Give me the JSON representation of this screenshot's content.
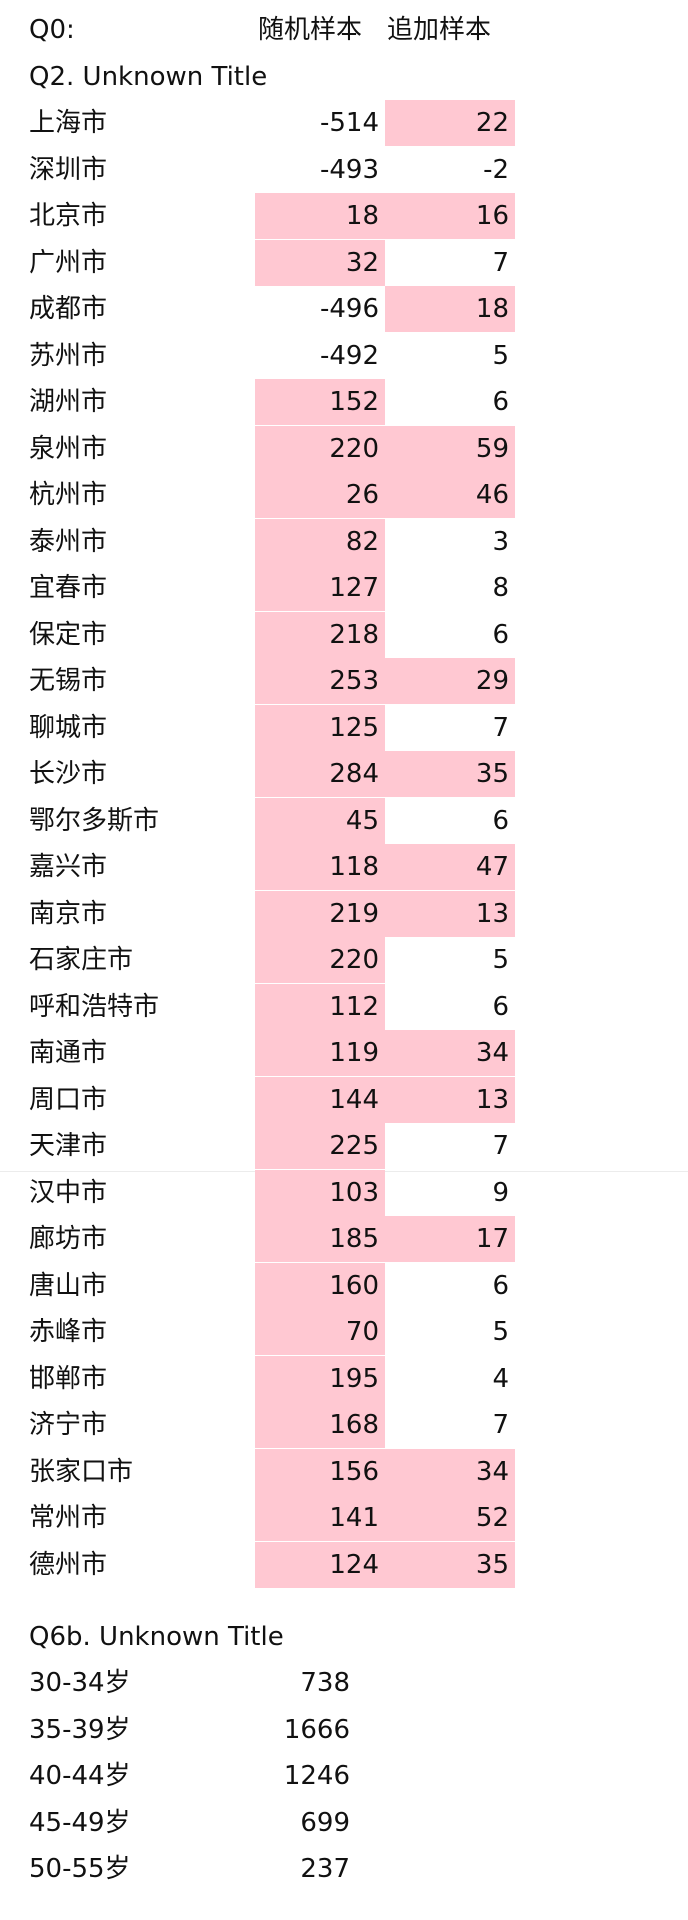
{
  "header": {
    "q0_label": "Q0:",
    "col1": "随机样本",
    "col2": "追加样本"
  },
  "q2": {
    "title": "Q2. Unknown Title",
    "rows": [
      {
        "city": "上海市",
        "random": "-514",
        "extra": "22",
        "random_hl": false,
        "extra_hl": true
      },
      {
        "city": "深圳市",
        "random": "-493",
        "extra": "-2",
        "random_hl": false,
        "extra_hl": false
      },
      {
        "city": "北京市",
        "random": "18",
        "extra": "16",
        "random_hl": true,
        "extra_hl": true
      },
      {
        "city": "广州市",
        "random": "32",
        "extra": "7",
        "random_hl": true,
        "extra_hl": false
      },
      {
        "city": "成都市",
        "random": "-496",
        "extra": "18",
        "random_hl": false,
        "extra_hl": true
      },
      {
        "city": "苏州市",
        "random": "-492",
        "extra": "5",
        "random_hl": false,
        "extra_hl": false
      },
      {
        "city": "湖州市",
        "random": "152",
        "extra": "6",
        "random_hl": true,
        "extra_hl": false
      },
      {
        "city": "泉州市",
        "random": "220",
        "extra": "59",
        "random_hl": true,
        "extra_hl": true
      },
      {
        "city": "杭州市",
        "random": "26",
        "extra": "46",
        "random_hl": true,
        "extra_hl": true
      },
      {
        "city": "泰州市",
        "random": "82",
        "extra": "3",
        "random_hl": true,
        "extra_hl": false
      },
      {
        "city": "宜春市",
        "random": "127",
        "extra": "8",
        "random_hl": true,
        "extra_hl": false
      },
      {
        "city": "保定市",
        "random": "218",
        "extra": "6",
        "random_hl": true,
        "extra_hl": false
      },
      {
        "city": "无锡市",
        "random": "253",
        "extra": "29",
        "random_hl": true,
        "extra_hl": true
      },
      {
        "city": "聊城市",
        "random": "125",
        "extra": "7",
        "random_hl": true,
        "extra_hl": false
      },
      {
        "city": "长沙市",
        "random": "284",
        "extra": "35",
        "random_hl": true,
        "extra_hl": true
      },
      {
        "city": "鄂尔多斯市",
        "random": "45",
        "extra": "6",
        "random_hl": true,
        "extra_hl": false
      },
      {
        "city": "嘉兴市",
        "random": "118",
        "extra": "47",
        "random_hl": true,
        "extra_hl": true
      },
      {
        "city": "南京市",
        "random": "219",
        "extra": "13",
        "random_hl": true,
        "extra_hl": true
      },
      {
        "city": "石家庄市",
        "random": "220",
        "extra": "5",
        "random_hl": true,
        "extra_hl": false
      },
      {
        "city": "呼和浩特市",
        "random": "112",
        "extra": "6",
        "random_hl": true,
        "extra_hl": false
      },
      {
        "city": "南通市",
        "random": "119",
        "extra": "34",
        "random_hl": true,
        "extra_hl": true
      },
      {
        "city": "周口市",
        "random": "144",
        "extra": "13",
        "random_hl": true,
        "extra_hl": true
      },
      {
        "city": "天津市",
        "random": "225",
        "extra": "7",
        "random_hl": true,
        "extra_hl": false
      },
      {
        "city": "汉中市",
        "random": "103",
        "extra": "9",
        "random_hl": true,
        "extra_hl": false
      },
      {
        "city": "廊坊市",
        "random": "185",
        "extra": "17",
        "random_hl": true,
        "extra_hl": true
      },
      {
        "city": "唐山市",
        "random": "160",
        "extra": "6",
        "random_hl": true,
        "extra_hl": false
      },
      {
        "city": "赤峰市",
        "random": "70",
        "extra": "5",
        "random_hl": true,
        "extra_hl": false
      },
      {
        "city": "邯郸市",
        "random": "195",
        "extra": "4",
        "random_hl": true,
        "extra_hl": false
      },
      {
        "city": "济宁市",
        "random": "168",
        "extra": "7",
        "random_hl": true,
        "extra_hl": false
      },
      {
        "city": "张家口市",
        "random": "156",
        "extra": "34",
        "random_hl": true,
        "extra_hl": true
      },
      {
        "city": "常州市",
        "random": "141",
        "extra": "52",
        "random_hl": true,
        "extra_hl": true
      },
      {
        "city": "德州市",
        "random": "124",
        "extra": "35",
        "random_hl": true,
        "extra_hl": true
      }
    ]
  },
  "q6b": {
    "title": "Q6b. Unknown Title",
    "rows": [
      {
        "age": "30-34岁",
        "value": "738"
      },
      {
        "age": "35-39岁",
        "value": "1666"
      },
      {
        "age": "40-44岁",
        "value": "1246"
      },
      {
        "age": "45-49岁",
        "value": "699"
      },
      {
        "age": "50-55岁",
        "value": "237"
      }
    ]
  },
  "colors": {
    "highlight": "#ffc8d2",
    "text": "#111111",
    "background": "#ffffff"
  }
}
